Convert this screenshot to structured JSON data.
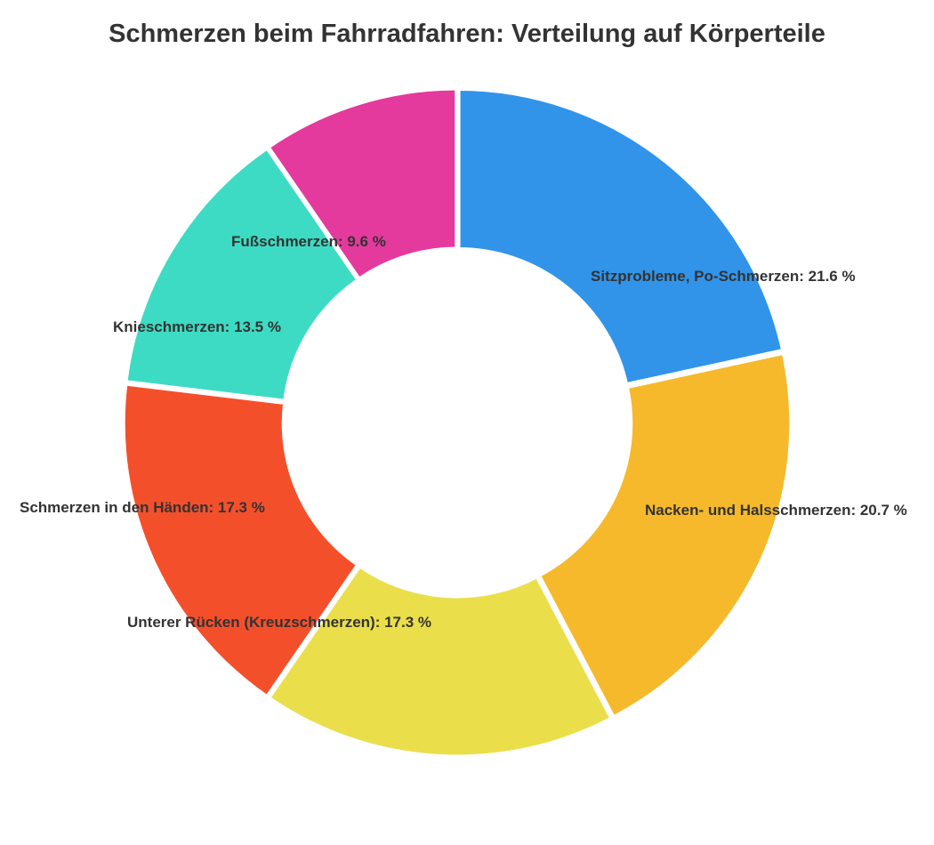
{
  "chart_data": {
    "type": "pie",
    "title": "Schmerzen beim Fahrradfahren: Verteilung auf Körperteile",
    "slices": [
      {
        "label": "Sitzprobleme, Po-Schmerzen",
        "value": 21.6,
        "display": "Sitzprobleme, Po-Schmerzen: 21.6 %",
        "color": "#3194E9"
      },
      {
        "label": "Nacken- und Halsschmerzen",
        "value": 20.7,
        "display": "Nacken- und Halsschmerzen: 20.7 %",
        "color": "#F5B92B"
      },
      {
        "label": "Unterer Rücken (Kreuzschmerzen)",
        "value": 17.3,
        "display": "Unterer Rücken (Kreuzschmerzen): 17.3 %",
        "color": "#EADF4A"
      },
      {
        "label": "Schmerzen in den Händen",
        "value": 17.3,
        "display": "Schmerzen in den Händen: 17.3 %",
        "color": "#F44F2B"
      },
      {
        "label": "Knieschmerzen",
        "value": 13.5,
        "display": "Knieschmerzen: 13.5 %",
        "color": "#3DDBC3"
      },
      {
        "label": "Fußschmerzen",
        "value": 9.6,
        "display": "Fußschmerzen: 9.6 %",
        "color": "#E4399D"
      }
    ],
    "hole": "donut",
    "start": "12 o'clock, clockwise",
    "legend": "none"
  }
}
